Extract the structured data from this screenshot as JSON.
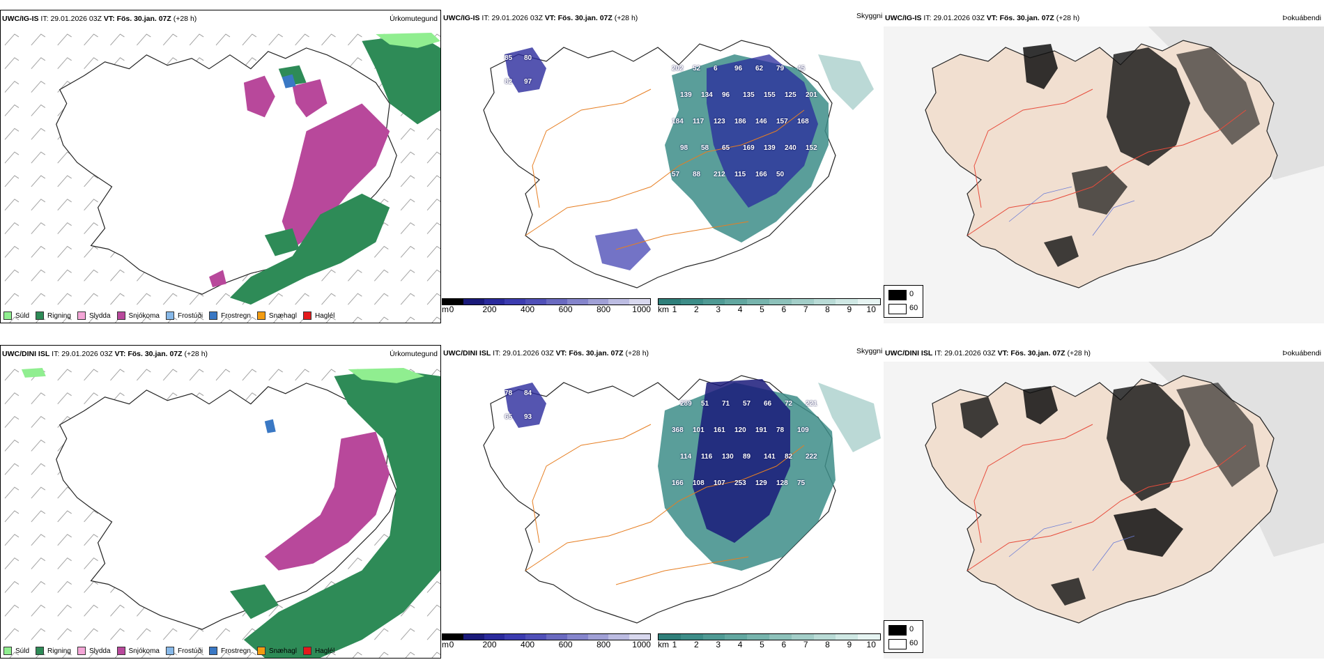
{
  "rows": [
    {
      "model": "UWC/IG-IS",
      "it_label": "IT:",
      "it": "29.01.2026 03Z",
      "vt_label": "VT:",
      "vt": "Fös. 30.jan. 07Z",
      "lead": "(+28 h)",
      "numbers": [
        "85",
        "80",
        "82",
        "97",
        "202",
        "52",
        "6",
        "96",
        "62",
        "79",
        "45",
        "139",
        "134",
        "96",
        "135",
        "155",
        "125",
        "201",
        "184",
        "117",
        "123",
        "186",
        "146",
        "157",
        "168",
        "98",
        "58",
        "65",
        "169",
        "139",
        "240",
        "152",
        "57",
        "88",
        "212",
        "115",
        "166",
        "50"
      ]
    },
    {
      "model": "UWC/DINI ISL",
      "it_label": "IT:",
      "it": "29.01.2026 03Z",
      "vt_label": "VT:",
      "vt": "Fös. 30.jan. 07Z",
      "lead": "(+28 h)",
      "numbers": [
        "78",
        "84",
        "65",
        "93",
        "289",
        "51",
        "71",
        "57",
        "66",
        "72",
        "221",
        "368",
        "101",
        "161",
        "120",
        "191",
        "78",
        "109",
        "114",
        "116",
        "130",
        "89",
        "141",
        "82",
        "222",
        "166",
        "108",
        "107",
        "253",
        "129",
        "128",
        "75"
      ]
    }
  ],
  "titles": {
    "precip": "Úrkomutegund",
    "cloud": "Skyggni",
    "fog": "Þokuábendi"
  },
  "precip_legend": [
    {
      "label": "Súld",
      "color": "#90ee90"
    },
    {
      "label": "Rigning",
      "color": "#2e8b57"
    },
    {
      "label": "Slydda",
      "color": "#f4a6d7"
    },
    {
      "label": "Snjókoma",
      "color": "#b8489b"
    },
    {
      "label": "Frostúði",
      "color": "#87b8e8"
    },
    {
      "label": "Frostregn",
      "color": "#3a78c4"
    },
    {
      "label": "Snæhagl",
      "color": "#f39c12"
    },
    {
      "label": "Haglél",
      "color": "#e41a1c"
    }
  ],
  "colorbar_height": {
    "unit": "m",
    "ticks": [
      "0",
      "200",
      "400",
      "600",
      "800",
      "1000"
    ],
    "colors": [
      "#000000",
      "#1a1a7a",
      "#2a2a9c",
      "#3c3cb0",
      "#5050b8",
      "#6a6ac0",
      "#8585cc",
      "#a0a0d6",
      "#bcbce2",
      "#d8d8ee"
    ]
  },
  "colorbar_vis": {
    "unit": "km",
    "ticks": [
      "1",
      "2",
      "3",
      "4",
      "5",
      "6",
      "7",
      "8",
      "9",
      "10"
    ],
    "colors": [
      "#2f7f7a",
      "#3d8d88",
      "#4f9a94",
      "#62a7a0",
      "#77b4ad",
      "#8dc1ba",
      "#a3cec8",
      "#b9dbd6",
      "#cfe8e4",
      "#e6f4f2"
    ]
  },
  "fog_legend": [
    {
      "label": "0",
      "color": "#000000"
    },
    {
      "label": "60",
      "color": "#ffffff"
    }
  ]
}
